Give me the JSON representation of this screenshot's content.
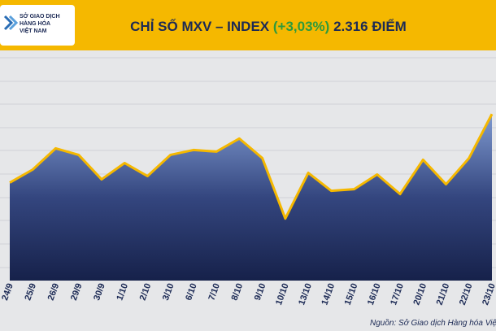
{
  "header": {
    "logo_lines": [
      "SỞ GIAO DỊCH",
      "HÀNG HÓA",
      "VIỆT NAM"
    ]
  },
  "chart_data": {
    "type": "area",
    "title": "CHỈ SỐ MXV – INDEX",
    "change": "(+3,03%)",
    "points": "2.316 ĐIỂM",
    "categories": [
      "24/9",
      "25/9",
      "26/9",
      "29/9",
      "30/9",
      "1/10",
      "2/10",
      "3/10",
      "6/10",
      "7/10",
      "8/10",
      "9/10",
      "10/10",
      "13/10",
      "14/10",
      "15/10",
      "16/10",
      "17/10",
      "20/10",
      "21/10",
      "22/10",
      "23/10"
    ],
    "values": [
      2274,
      2282,
      2295,
      2291,
      2276,
      2286,
      2278,
      2291,
      2294,
      2293,
      2301,
      2289,
      2252,
      2280,
      2269,
      2270,
      2279,
      2267,
      2288,
      2273,
      2289,
      2316
    ],
    "ylim": [
      2214,
      2351
    ],
    "color": "#f5b800",
    "change_color": "#2e9a3c",
    "source": "Nguồn: Sở Giao dịch Hàng hóa Việt Nam"
  }
}
